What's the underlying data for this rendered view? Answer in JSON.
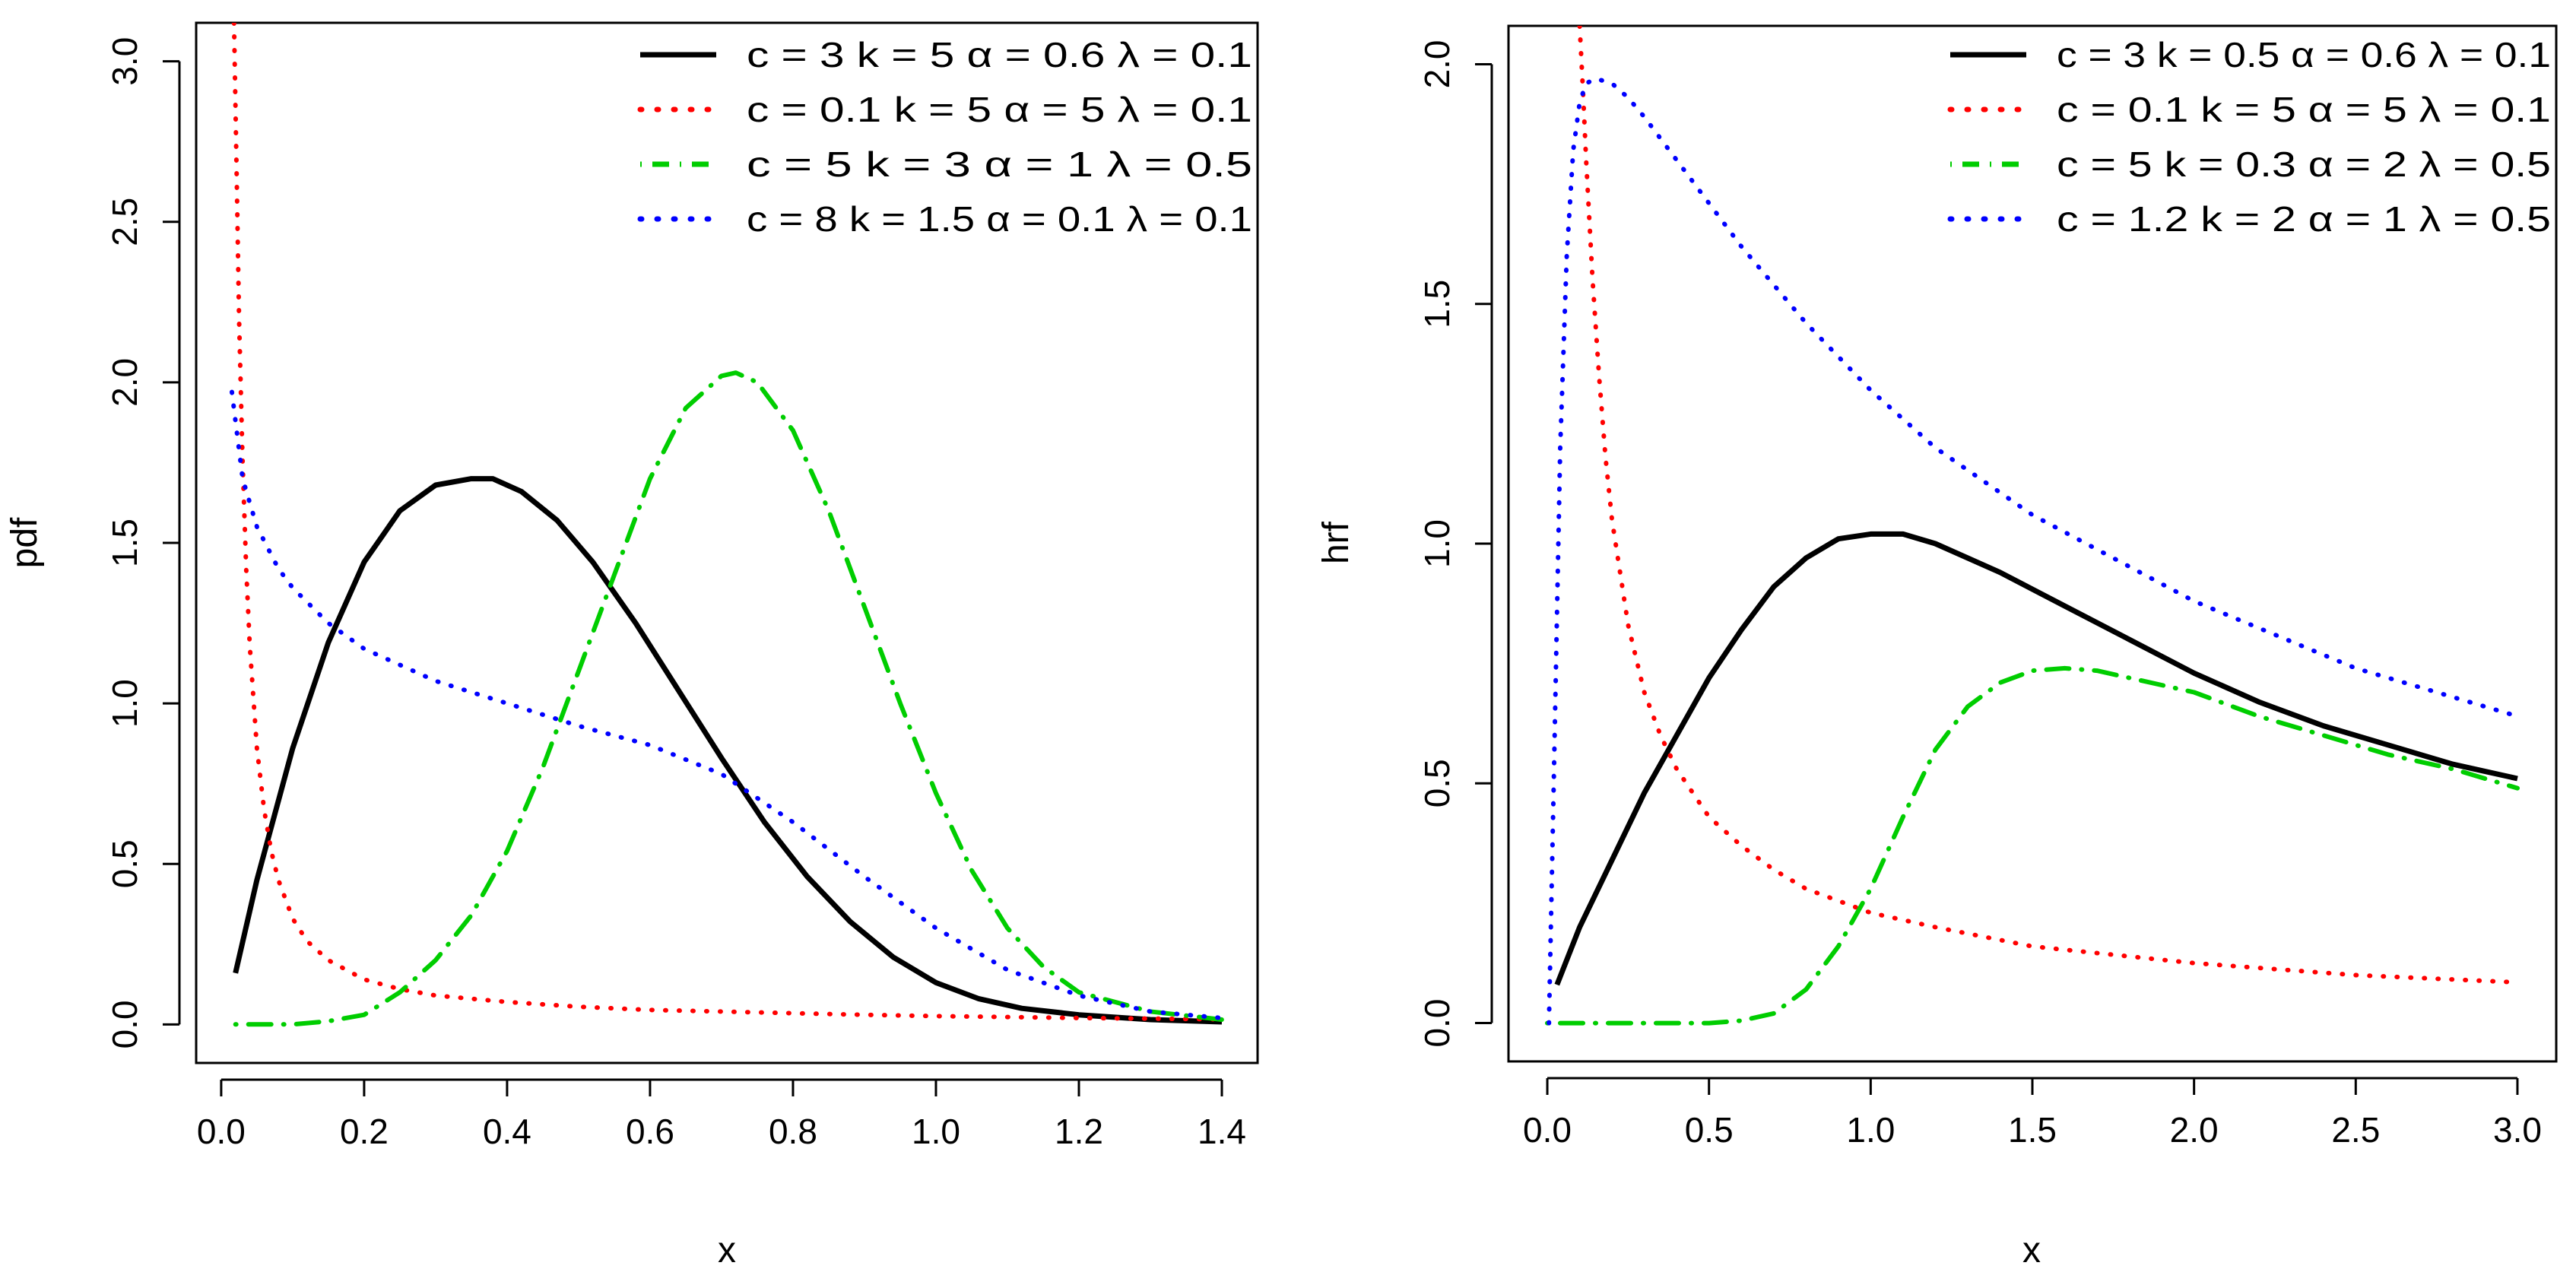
{
  "chart_data": [
    {
      "id": "pdf",
      "type": "line",
      "xlabel": "x",
      "ylabel": "pdf",
      "xlim": [
        -0.035,
        1.45
      ],
      "ylim": [
        -0.12,
        3.12
      ],
      "xticks": [
        0.0,
        0.2,
        0.4,
        0.6,
        0.8,
        1.0,
        1.2,
        1.4
      ],
      "xtick_labels": [
        "0.0",
        "0.2",
        "0.4",
        "0.6",
        "0.8",
        "1.0",
        "1.2",
        "1.4"
      ],
      "yticks": [
        0.0,
        0.5,
        1.0,
        1.5,
        2.0,
        2.5,
        3.0
      ],
      "ytick_labels": [
        "0.0",
        "0.5",
        "1.0",
        "1.5",
        "2.0",
        "2.5",
        "3.0"
      ],
      "legend_position": "top-right",
      "series": [
        {
          "name": "c = 3  k = 5  α = 0.6  λ = 0.1",
          "color": "#000000",
          "dash": "solid",
          "x": [
            0.02,
            0.05,
            0.1,
            0.15,
            0.2,
            0.25,
            0.3,
            0.35,
            0.38,
            0.42,
            0.47,
            0.52,
            0.58,
            0.64,
            0.7,
            0.76,
            0.82,
            0.88,
            0.94,
            1.0,
            1.06,
            1.12,
            1.2,
            1.3,
            1.4
          ],
          "y": [
            0.16,
            0.45,
            0.86,
            1.19,
            1.44,
            1.6,
            1.68,
            1.7,
            1.7,
            1.66,
            1.57,
            1.44,
            1.25,
            1.04,
            0.83,
            0.63,
            0.46,
            0.32,
            0.21,
            0.13,
            0.08,
            0.05,
            0.03,
            0.015,
            0.008
          ]
        },
        {
          "name": "c = 0.1  k = 5  α = 5  λ = 0.1",
          "color": "#ff0000",
          "dash": "dotted",
          "x": [
            0.018,
            0.022,
            0.025,
            0.03,
            0.035,
            0.04,
            0.05,
            0.06,
            0.07,
            0.08,
            0.1,
            0.12,
            0.15,
            0.2,
            0.25,
            0.3,
            0.4,
            0.5,
            0.6,
            0.7,
            0.8,
            0.9,
            1.0,
            1.1,
            1.2,
            1.3,
            1.4
          ],
          "y": [
            3.12,
            2.6,
            2.2,
            1.75,
            1.42,
            1.18,
            0.86,
            0.67,
            0.54,
            0.45,
            0.33,
            0.26,
            0.2,
            0.14,
            0.11,
            0.09,
            0.07,
            0.055,
            0.045,
            0.04,
            0.035,
            0.03,
            0.026,
            0.023,
            0.02,
            0.018,
            0.016
          ]
        },
        {
          "name": "c = 5  k = 3  α = 1  λ = 0.5",
          "color": "#00cd00",
          "dash": "dashdot",
          "x": [
            0.02,
            0.1,
            0.15,
            0.2,
            0.25,
            0.3,
            0.35,
            0.4,
            0.45,
            0.5,
            0.55,
            0.6,
            0.65,
            0.7,
            0.72,
            0.75,
            0.8,
            0.85,
            0.9,
            0.95,
            1.0,
            1.05,
            1.1,
            1.15,
            1.2,
            1.3,
            1.4
          ],
          "y": [
            0.0,
            0.0,
            0.01,
            0.03,
            0.1,
            0.2,
            0.34,
            0.54,
            0.8,
            1.1,
            1.4,
            1.7,
            1.92,
            2.02,
            2.03,
            2.0,
            1.85,
            1.6,
            1.3,
            1.0,
            0.72,
            0.48,
            0.3,
            0.18,
            0.1,
            0.04,
            0.015
          ]
        },
        {
          "name": "c = 8  k = 1.5  α = 0.1  λ = 0.1",
          "color": "#0000ff",
          "dash": "dotted",
          "x": [
            0.015,
            0.03,
            0.05,
            0.08,
            0.1,
            0.15,
            0.2,
            0.3,
            0.4,
            0.5,
            0.6,
            0.7,
            0.8,
            0.9,
            1.0,
            1.1,
            1.2,
            1.3,
            1.4
          ],
          "y": [
            1.97,
            1.7,
            1.55,
            1.42,
            1.36,
            1.25,
            1.17,
            1.07,
            1.0,
            0.93,
            0.87,
            0.78,
            0.63,
            0.46,
            0.3,
            0.17,
            0.09,
            0.04,
            0.02
          ]
        }
      ]
    },
    {
      "id": "hrf",
      "type": "line",
      "xlabel": "x",
      "ylabel": "hrf",
      "xlim": [
        -0.12,
        3.12
      ],
      "ylim": [
        -0.08,
        2.08
      ],
      "xticks": [
        0.0,
        0.5,
        1.0,
        1.5,
        2.0,
        2.5,
        3.0
      ],
      "xtick_labels": [
        "0.0",
        "0.5",
        "1.0",
        "1.5",
        "2.0",
        "2.5",
        "3.0"
      ],
      "yticks": [
        0.0,
        0.5,
        1.0,
        1.5,
        2.0
      ],
      "ytick_labels": [
        "0.0",
        "0.5",
        "1.0",
        "1.5",
        "2.0"
      ],
      "legend_position": "top-right",
      "series": [
        {
          "name": "c = 3  k = 0.5  α = 0.6  λ = 0.1",
          "color": "#000000",
          "dash": "solid",
          "x": [
            0.03,
            0.1,
            0.2,
            0.3,
            0.4,
            0.5,
            0.6,
            0.7,
            0.8,
            0.9,
            1.0,
            1.1,
            1.2,
            1.4,
            1.6,
            1.8,
            2.0,
            2.2,
            2.4,
            2.6,
            2.8,
            3.0
          ],
          "y": [
            0.08,
            0.2,
            0.34,
            0.48,
            0.6,
            0.72,
            0.82,
            0.91,
            0.97,
            1.01,
            1.02,
            1.02,
            1.0,
            0.94,
            0.87,
            0.8,
            0.73,
            0.67,
            0.62,
            0.58,
            0.54,
            0.51
          ]
        },
        {
          "name": "c = 0.1  k = 5  α = 5  λ = 0.1",
          "color": "#ff0000",
          "dash": "dotted",
          "x": [
            0.1,
            0.11,
            0.12,
            0.14,
            0.16,
            0.18,
            0.2,
            0.25,
            0.3,
            0.35,
            0.4,
            0.5,
            0.6,
            0.7,
            0.8,
            1.0,
            1.2,
            1.5,
            2.0,
            2.5,
            3.0
          ],
          "y": [
            2.08,
            1.95,
            1.8,
            1.55,
            1.35,
            1.18,
            1.05,
            0.83,
            0.69,
            0.6,
            0.53,
            0.43,
            0.37,
            0.32,
            0.28,
            0.23,
            0.2,
            0.16,
            0.125,
            0.1,
            0.085
          ]
        },
        {
          "name": "c = 5  k = 0.3  α = 2  λ = 0.5",
          "color": "#00cd00",
          "dash": "dashdot",
          "x": [
            0.0,
            0.3,
            0.5,
            0.6,
            0.7,
            0.8,
            0.9,
            1.0,
            1.1,
            1.2,
            1.3,
            1.4,
            1.5,
            1.6,
            1.7,
            1.8,
            2.0,
            2.2,
            2.4,
            2.6,
            2.8,
            3.0
          ],
          "y": [
            0.0,
            0.0,
            0.0,
            0.005,
            0.02,
            0.07,
            0.16,
            0.28,
            0.43,
            0.57,
            0.66,
            0.71,
            0.735,
            0.74,
            0.735,
            0.72,
            0.69,
            0.64,
            0.6,
            0.56,
            0.53,
            0.49
          ]
        },
        {
          "name": "c = 1.2  k = 2  α = 1  λ = 0.5",
          "color": "#0000ff",
          "dash": "dotted",
          "x": [
            0.005,
            0.02,
            0.04,
            0.06,
            0.08,
            0.1,
            0.12,
            0.15,
            0.2,
            0.25,
            0.3,
            0.4,
            0.5,
            0.6,
            0.8,
            1.0,
            1.2,
            1.5,
            2.0,
            2.5,
            3.0
          ],
          "y": [
            0.0,
            0.5,
            1.2,
            1.6,
            1.82,
            1.92,
            1.96,
            1.97,
            1.96,
            1.93,
            1.89,
            1.8,
            1.71,
            1.62,
            1.46,
            1.32,
            1.2,
            1.06,
            0.88,
            0.74,
            0.64
          ]
        }
      ]
    }
  ]
}
